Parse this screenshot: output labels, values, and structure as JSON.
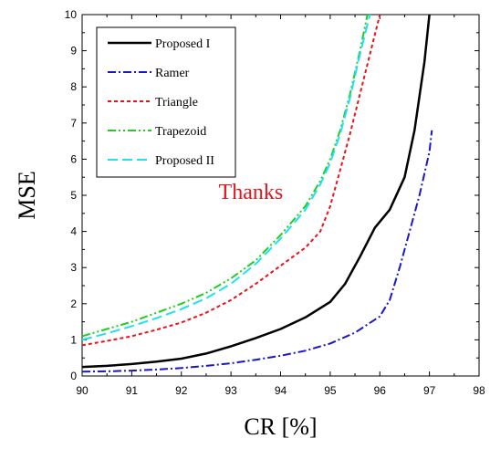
{
  "chart_data": {
    "type": "line",
    "title": "",
    "xlabel": "CR [%]",
    "ylabel": "MSE",
    "xlim": [
      90,
      98
    ],
    "ylim": [
      0,
      10
    ],
    "xticks": [
      "90",
      "91",
      "92",
      "93",
      "94",
      "95",
      "96",
      "97",
      "98"
    ],
    "yticks": [
      "0",
      "1",
      "2",
      "3",
      "4",
      "5",
      "6",
      "7",
      "8",
      "9",
      "10"
    ],
    "grid": false,
    "legend_position": "top-left",
    "annotation": {
      "text": "Thanks",
      "x": 93.4,
      "y": 4.9,
      "color": "#e8141b"
    },
    "series": [
      {
        "name": "Proposed I",
        "color": "#000000",
        "dash": "solid",
        "x": [
          90.0,
          90.5,
          91.0,
          91.5,
          92.0,
          92.5,
          93.0,
          93.5,
          94.0,
          94.5,
          95.0,
          95.3,
          95.6,
          95.9,
          96.2,
          96.5,
          96.7,
          96.9,
          97.0
        ],
        "y": [
          0.25,
          0.28,
          0.33,
          0.4,
          0.48,
          0.62,
          0.82,
          1.05,
          1.3,
          1.62,
          2.05,
          2.55,
          3.3,
          4.1,
          4.6,
          5.5,
          6.8,
          8.7,
          10.0
        ]
      },
      {
        "name": "Ramer",
        "color": "#1818c8",
        "dash": "dashdot",
        "x": [
          90.0,
          90.5,
          91.0,
          91.5,
          92.0,
          92.5,
          93.0,
          93.5,
          94.0,
          94.5,
          95.0,
          95.5,
          96.0,
          96.2,
          96.4,
          96.6,
          96.8,
          97.0,
          97.05
        ],
        "y": [
          0.12,
          0.13,
          0.15,
          0.18,
          0.22,
          0.28,
          0.35,
          0.45,
          0.56,
          0.7,
          0.9,
          1.2,
          1.65,
          2.1,
          3.0,
          4.0,
          5.0,
          6.2,
          6.8
        ]
      },
      {
        "name": "Triangle",
        "color": "#e8141b",
        "dash": "dot",
        "x": [
          90.0,
          90.5,
          91.0,
          91.5,
          92.0,
          92.5,
          93.0,
          93.5,
          94.0,
          94.5,
          94.8,
          95.0,
          95.2,
          95.4,
          95.6,
          95.8,
          96.0
        ],
        "y": [
          0.85,
          0.97,
          1.1,
          1.28,
          1.48,
          1.75,
          2.1,
          2.55,
          3.05,
          3.55,
          4.0,
          4.7,
          5.7,
          6.7,
          7.8,
          8.9,
          10.0
        ]
      },
      {
        "name": "Trapezoid",
        "color": "#22cc22",
        "dash": "dashdotdot",
        "x": [
          90.0,
          90.5,
          91.0,
          91.5,
          92.0,
          92.5,
          93.0,
          93.5,
          94.0,
          94.5,
          94.8,
          95.0,
          95.2,
          95.4,
          95.6,
          95.75
        ],
        "y": [
          1.1,
          1.3,
          1.5,
          1.75,
          2.0,
          2.3,
          2.7,
          3.2,
          3.9,
          4.7,
          5.4,
          6.0,
          6.8,
          7.8,
          9.0,
          10.0
        ]
      },
      {
        "name": "Proposed II",
        "color": "#22e0f0",
        "dash": "dash",
        "x": [
          90.0,
          90.5,
          91.0,
          91.5,
          92.0,
          92.5,
          93.0,
          93.5,
          94.0,
          94.5,
          94.8,
          95.0,
          95.2,
          95.4,
          95.6,
          95.8
        ],
        "y": [
          1.0,
          1.18,
          1.38,
          1.6,
          1.85,
          2.15,
          2.55,
          3.1,
          3.8,
          4.6,
          5.3,
          5.9,
          6.7,
          7.7,
          8.9,
          10.0
        ]
      }
    ]
  }
}
